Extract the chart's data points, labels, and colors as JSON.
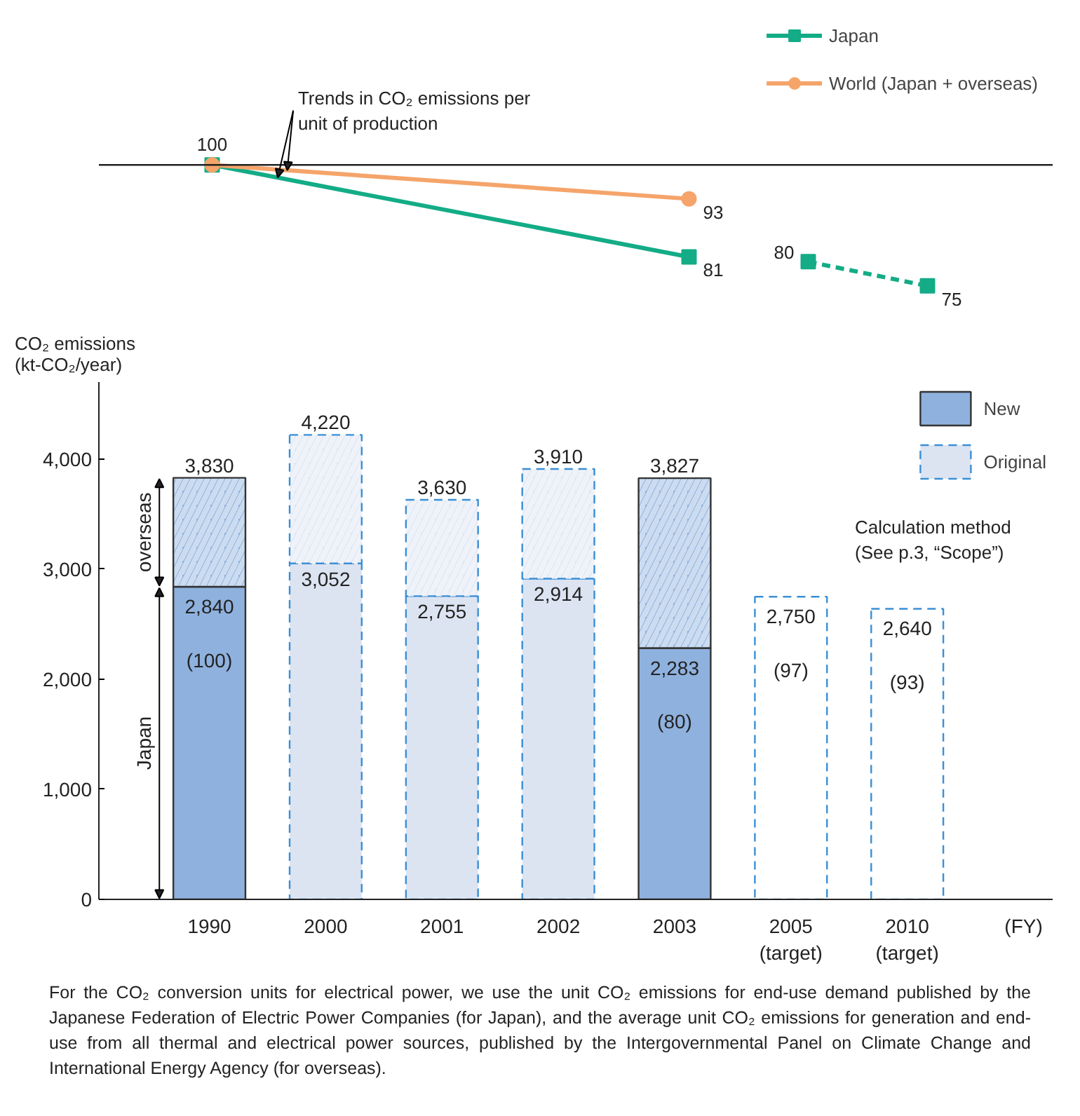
{
  "chart_data": [
    {
      "type": "line",
      "categories": [
        null,
        null,
        null,
        null,
        null,
        null,
        null
      ],
      "tick_labels": false,
      "legend": "top right",
      "grid": false,
      "series": [
        {
          "name": "Japan",
          "color": "#13ac86",
          "marker": "square",
          "line_style": "solid",
          "values": [
            100,
            null,
            null,
            null,
            81,
            null,
            null
          ],
          "value_labels": [
            "100",
            null,
            null,
            null,
            "81",
            null,
            null
          ]
        },
        {
          "color": "#13ac86",
          "marker": "square",
          "line_style": "dashed",
          "values": [
            null,
            null,
            null,
            null,
            null,
            80,
            75
          ],
          "value_labels": [
            null,
            null,
            null,
            null,
            null,
            "80",
            "75"
          ]
        },
        {
          "name": "World (Japan + overseas)",
          "color": "#f5a46a",
          "marker": "circle",
          "line_style": "solid",
          "values": [
            100,
            null,
            null,
            null,
            93,
            null,
            null
          ],
          "value_labels": [
            null,
            null,
            null,
            null,
            "93",
            null,
            null
          ]
        }
      ],
      "ref_lines": [
        {
          "axis": "y",
          "value": 100,
          "color": "#222222"
        }
      ],
      "annotations": [
        "Trends in CO₂ emissions per\nunit of production"
      ]
    },
    {
      "type": "bar",
      "stacked": true,
      "categories": [
        "1990",
        "2000",
        "2001",
        "2002",
        "2003",
        "2005\n(target)",
        "2010\n(target)"
      ],
      "xlabel": "(FY)",
      "ylabel": "CO₂ emissions\n(kt-CO₂/year)",
      "ylim": [
        0,
        4700
      ],
      "yticks": [
        0,
        {
          "value": 1000,
          "label": "1,000"
        },
        {
          "value": 2000,
          "label": "2,000"
        },
        {
          "value": 3000,
          "label": "3,000"
        },
        {
          "value": 4000,
          "label": "4,000"
        }
      ],
      "grid": false,
      "legend": "top right",
      "legend_title": "Calculation method\n(See p.3, “Scope”)",
      "series": [
        {
          "name": "Japan",
          "colors": [
            "#8fb1de",
            "#dce4f2",
            "#dce4f2",
            "#dce4f2",
            "#8fb1de",
            "#ffffff",
            "#ffffff"
          ],
          "values": [
            2840,
            3052,
            2755,
            2914,
            2283,
            2750,
            2640
          ],
          "value_labels": [
            "2,840\n\n(100)",
            "3,052",
            "2,755",
            "2,914",
            "2,283\n\n(80)",
            "2,750\n\n(97)",
            "2,640\n\n(93)"
          ]
        },
        {
          "name": "overseas",
          "colors": [
            "#8fb1de",
            "#dce4f2",
            "#dce4f2",
            "#dce4f2",
            "#8fb1de",
            null,
            null
          ],
          "values": [
            990,
            1168,
            875,
            996,
            1544,
            null,
            null
          ]
        },
        {
          "name": "New",
          "color": "#8fb1de",
          "line_style": "solid",
          "values": [
            null,
            null,
            null,
            null,
            null,
            null,
            null
          ]
        },
        {
          "name": "Original",
          "color": "#dce4f2",
          "line_style": "dashed",
          "values": [
            null,
            null,
            null,
            null,
            null,
            null,
            null
          ]
        }
      ],
      "totals": [
        "3,830",
        "4,220",
        "3,630",
        "3,910",
        "3,827",
        null,
        null
      ],
      "annotations": [
        "For the CO₂ conversion units for electrical power, we use the unit CO₂ emissions for end-use demand published by the Japanese Federation of Electric Power Companies (for Japan), and the average unit CO₂ emissions for generation and end-use from all thermal and electrical power sources, published by the Intergovernmental Panel on Climate Change and International Energy Agency (for overseas)."
      ]
    }
  ]
}
